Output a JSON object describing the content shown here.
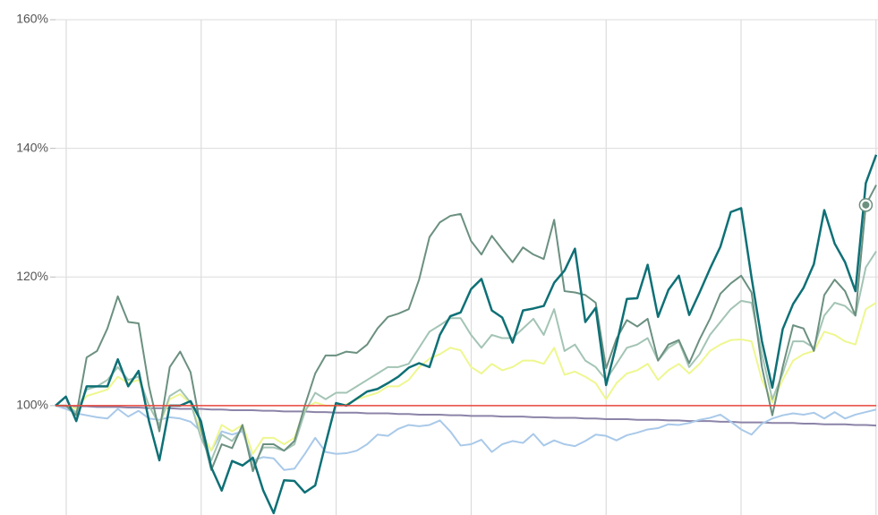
{
  "chart_data": {
    "type": "line",
    "ylim": [
      83,
      160
    ],
    "yticks": [
      {
        "value": 100,
        "label": "100%"
      },
      {
        "value": 120,
        "label": "120%"
      },
      {
        "value": 140,
        "label": "140%"
      },
      {
        "value": 160,
        "label": "160%"
      }
    ],
    "grid": true,
    "reference_line": {
      "value": 100,
      "color": "#e8463c"
    },
    "highlight_point": {
      "series": 1,
      "index": 78
    },
    "series": [
      {
        "color": "#0e7076",
        "values": [
          100,
          101.4,
          97.6,
          103,
          103,
          103,
          107.2,
          103,
          105.4,
          97.6,
          91.5,
          100,
          100,
          100.7,
          97.6,
          90.4,
          86.8,
          91.4,
          90.7,
          91.9,
          86.8,
          83.3,
          88.4,
          88.3,
          86.5,
          87.6,
          94.1,
          100.4,
          100,
          101.1,
          102.2,
          102.6,
          103.5,
          104.5,
          105.9,
          106.6,
          106,
          111,
          113.9,
          114.5,
          118.1,
          119.7,
          114.8,
          113.7,
          109.8,
          114.8,
          115.1,
          115.5,
          119.1,
          121,
          124.4,
          113,
          115.2,
          103.2,
          109.5,
          116.6,
          116.7,
          121.9,
          113.8,
          118,
          120.2,
          114.1,
          117.6,
          121.3,
          124.7,
          130.1,
          130.7,
          119.9,
          110,
          102.8,
          111.9,
          115.8,
          118.3,
          122,
          130.4,
          125.2,
          122.3,
          117.8,
          134.6,
          139
        ]
      },
      {
        "color": "#6b9080",
        "values": [
          100,
          100,
          98.5,
          107.5,
          108.5,
          112,
          117,
          113,
          112.8,
          103,
          96,
          106,
          108.4,
          105.2,
          96.5,
          90,
          94,
          93.4,
          97,
          89.8,
          94,
          94,
          93,
          94.5,
          100,
          105,
          107.8,
          107.8,
          108.4,
          108.2,
          109.5,
          112,
          113.8,
          114.3,
          115,
          119.6,
          126.2,
          128.5,
          129.5,
          129.8,
          125.6,
          123.5,
          126.4,
          124.3,
          122.3,
          124.6,
          123.5,
          122.8,
          128.9,
          117.8,
          117.6,
          117.2,
          116,
          105.8,
          110.4,
          113.3,
          112.3,
          113.5,
          107,
          109.5,
          110.2,
          106.6,
          110.3,
          113.5,
          117.4,
          119,
          120.2,
          117.6,
          106,
          98.5,
          106,
          112.5,
          112,
          108.5,
          117.2,
          119.6,
          117.8,
          114,
          131.2,
          134.3
        ]
      },
      {
        "color": "#a3c4b5",
        "values": [
          100,
          100,
          99,
          102.5,
          103,
          104,
          106,
          104,
          104.5,
          100,
          97,
          101.5,
          102.5,
          100.5,
          95,
          91.5,
          95.5,
          94.5,
          96.5,
          90.5,
          93.5,
          93.5,
          93,
          94,
          99,
          102,
          101,
          102,
          102,
          103,
          104,
          105,
          106,
          106,
          106.5,
          109,
          111.5,
          112.5,
          113.6,
          113.6,
          111,
          109,
          111,
          110.5,
          110.5,
          112,
          113.5,
          111,
          115,
          108.5,
          109.5,
          107,
          106,
          104,
          106.5,
          109,
          109.5,
          110.5,
          107,
          109,
          110,
          106,
          108,
          111,
          113,
          115,
          116.3,
          116,
          108,
          101,
          105,
          110,
          110,
          109,
          114,
          116,
          115.5,
          114,
          121.5,
          124
        ]
      },
      {
        "color": "#eef78f",
        "values": [
          100,
          100,
          99.5,
          101.5,
          102,
          102.5,
          104.5,
          103.5,
          104,
          100,
          97,
          101,
          101.8,
          100.3,
          96,
          93,
          97,
          96,
          97,
          92.5,
          95,
          95,
          94,
          95,
          99.5,
          100.5,
          100,
          100,
          100.2,
          101,
          101.5,
          102,
          103,
          103,
          104,
          106,
          107.3,
          108,
          109,
          108.6,
          106,
          105,
          106.5,
          105.5,
          106,
          107,
          107,
          106.5,
          109,
          104.8,
          105.3,
          104.5,
          103.5,
          101,
          103.5,
          105,
          105.5,
          106.5,
          104,
          105.5,
          106.5,
          105,
          106.5,
          108.5,
          109.5,
          110.2,
          110.3,
          110,
          104,
          100.5,
          104,
          107,
          108,
          108.5,
          111.5,
          111,
          110,
          109.5,
          115,
          116
        ]
      },
      {
        "color": "#a9c9e9",
        "values": [
          100,
          99.5,
          98.8,
          98.5,
          98.2,
          98,
          99.5,
          98.3,
          99.2,
          98,
          97.8,
          98.2,
          98,
          97.5,
          96,
          93,
          96,
          95.5,
          96,
          91.5,
          92,
          91.8,
          90,
          90.2,
          92.5,
          95,
          92.8,
          92.5,
          92.6,
          93,
          94,
          95.5,
          95.3,
          96.4,
          97,
          96.8,
          97,
          97.7,
          96,
          93.8,
          94,
          94.7,
          92.8,
          94,
          94.5,
          94.2,
          95.6,
          93.8,
          94.6,
          94,
          93.7,
          94.5,
          95.5,
          95.3,
          94.6,
          95.4,
          95.8,
          96.3,
          96.5,
          97.1,
          97,
          97.3,
          97.8,
          98.1,
          98.6,
          97.5,
          96.3,
          95.5,
          97.2,
          98,
          98.5,
          98.8,
          98.6,
          98.9,
          98,
          99,
          98,
          98.6,
          99,
          99.4
        ]
      },
      {
        "color": "#8c84a8",
        "values": [
          100,
          99.9,
          99.9,
          99.9,
          99.8,
          99.8,
          99.8,
          99.7,
          99.7,
          99.6,
          99.6,
          99.6,
          99.5,
          99.5,
          99.5,
          99.4,
          99.4,
          99.3,
          99.3,
          99.3,
          99.2,
          99.2,
          99.1,
          99.1,
          99.1,
          99,
          99,
          98.9,
          98.9,
          98.9,
          98.8,
          98.8,
          98.8,
          98.7,
          98.7,
          98.6,
          98.6,
          98.6,
          98.5,
          98.5,
          98.4,
          98.4,
          98.4,
          98.3,
          98.3,
          98.3,
          98.2,
          98.2,
          98.1,
          98.1,
          98.1,
          98,
          98,
          97.9,
          97.9,
          97.9,
          97.8,
          97.8,
          97.8,
          97.7,
          97.7,
          97.6,
          97.6,
          97.6,
          97.5,
          97.5,
          97.4,
          97.4,
          97.4,
          97.3,
          97.3,
          97.3,
          97.2,
          97.2,
          97.1,
          97.1,
          97.1,
          97,
          97,
          96.9
        ]
      }
    ]
  }
}
